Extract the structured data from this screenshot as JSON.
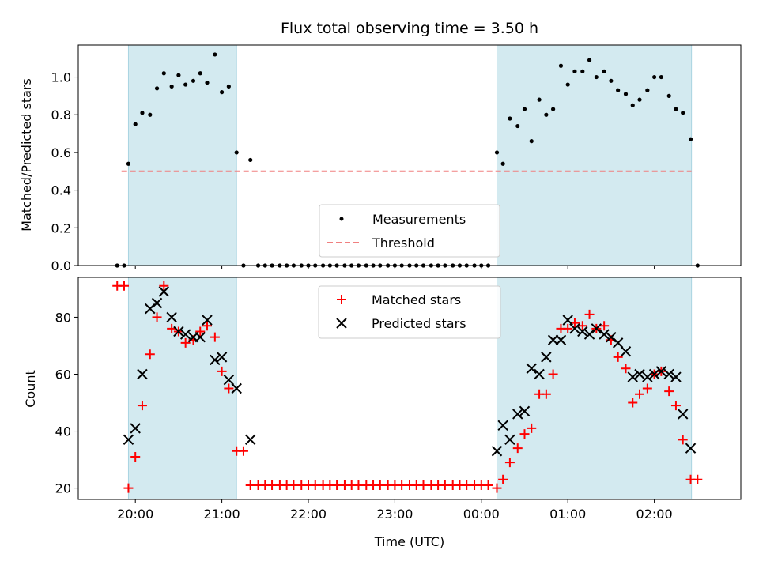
{
  "chart_data": {
    "type": "scatter",
    "title": "Flux total observing time = 3.50 h",
    "x_tick_labels": [
      "20:00",
      "21:00",
      "22:00",
      "23:00",
      "00:00",
      "01:00",
      "02:00"
    ],
    "x_tick_hours": [
      20,
      21,
      22,
      23,
      24,
      25,
      26
    ],
    "xlabel": "Time (UTC)",
    "xlim": [
      19.34,
      27.0
    ],
    "shaded_intervals": [
      [
        19.92,
        21.17
      ],
      [
        24.18,
        26.43
      ]
    ],
    "colors": {
      "shade": "#d3eaf0",
      "shade_edge": "#a9d4e1",
      "matched": "#ff0000",
      "predicted": "#000000",
      "measure": "#000000",
      "threshold": "#f08080"
    },
    "top": {
      "ylabel": "Matched/Predicted stars",
      "ylim": [
        0,
        1.17
      ],
      "y_ticks": [
        "0.0",
        "0.2",
        "0.4",
        "0.6",
        "0.8",
        "1.0"
      ],
      "y_tick_values": [
        0,
        0.2,
        0.4,
        0.6,
        0.8,
        1.0
      ],
      "threshold": {
        "value": 0.5,
        "x_range": [
          19.84,
          26.43
        ]
      },
      "legend": [
        "Measurements",
        "Threshold"
      ],
      "measurements": [
        [
          19.79,
          0.0
        ],
        [
          19.87,
          0.0
        ],
        [
          19.92,
          0.54
        ],
        [
          20.0,
          0.75
        ],
        [
          20.08,
          0.81
        ],
        [
          20.17,
          0.8
        ],
        [
          20.25,
          0.94
        ],
        [
          20.33,
          1.02
        ],
        [
          20.42,
          0.95
        ],
        [
          20.5,
          1.01
        ],
        [
          20.58,
          0.96
        ],
        [
          20.67,
          0.98
        ],
        [
          20.75,
          1.02
        ],
        [
          20.83,
          0.97
        ],
        [
          20.92,
          1.12
        ],
        [
          21.0,
          0.92
        ],
        [
          21.08,
          0.95
        ],
        [
          21.17,
          0.6
        ],
        [
          21.25,
          0.0
        ],
        [
          21.33,
          0.56
        ],
        [
          21.42,
          0.0
        ],
        [
          21.5,
          0.0
        ],
        [
          21.58,
          0.0
        ],
        [
          21.67,
          0.0
        ],
        [
          21.75,
          0.0
        ],
        [
          21.83,
          0.0
        ],
        [
          21.92,
          0.0
        ],
        [
          22.0,
          0.0
        ],
        [
          22.08,
          0.0
        ],
        [
          22.17,
          0.0
        ],
        [
          22.25,
          0.0
        ],
        [
          22.33,
          0.0
        ],
        [
          22.42,
          0.0
        ],
        [
          22.5,
          0.0
        ],
        [
          22.58,
          0.0
        ],
        [
          22.67,
          0.0
        ],
        [
          22.75,
          0.0
        ],
        [
          22.83,
          0.0
        ],
        [
          22.92,
          0.0
        ],
        [
          23.0,
          0.0
        ],
        [
          23.08,
          0.0
        ],
        [
          23.17,
          0.0
        ],
        [
          23.25,
          0.0
        ],
        [
          23.33,
          0.0
        ],
        [
          23.42,
          0.0
        ],
        [
          23.5,
          0.0
        ],
        [
          23.58,
          0.0
        ],
        [
          23.67,
          0.0
        ],
        [
          23.75,
          0.0
        ],
        [
          23.83,
          0.0
        ],
        [
          23.92,
          0.0
        ],
        [
          24.0,
          0.0
        ],
        [
          24.08,
          0.0
        ],
        [
          24.18,
          0.6
        ],
        [
          24.25,
          0.54
        ],
        [
          24.33,
          0.78
        ],
        [
          24.42,
          0.74
        ],
        [
          24.5,
          0.83
        ],
        [
          24.58,
          0.66
        ],
        [
          24.67,
          0.88
        ],
        [
          24.75,
          0.8
        ],
        [
          24.83,
          0.83
        ],
        [
          24.92,
          1.06
        ],
        [
          25.0,
          0.96
        ],
        [
          25.08,
          1.03
        ],
        [
          25.17,
          1.03
        ],
        [
          25.25,
          1.09
        ],
        [
          25.33,
          1.0
        ],
        [
          25.42,
          1.03
        ],
        [
          25.5,
          0.98
        ],
        [
          25.58,
          0.93
        ],
        [
          25.67,
          0.91
        ],
        [
          25.75,
          0.85
        ],
        [
          25.83,
          0.88
        ],
        [
          25.92,
          0.93
        ],
        [
          26.0,
          1.0
        ],
        [
          26.08,
          1.0
        ],
        [
          26.17,
          0.9
        ],
        [
          26.25,
          0.83
        ],
        [
          26.33,
          0.81
        ],
        [
          26.42,
          0.67
        ],
        [
          26.5,
          0.0
        ]
      ]
    },
    "bottom": {
      "ylabel": "Count",
      "ylim": [
        16,
        94
      ],
      "y_ticks": [
        "20",
        "40",
        "60",
        "80"
      ],
      "y_tick_values": [
        20,
        40,
        60,
        80
      ],
      "legend": [
        "Matched stars",
        "Predicted stars"
      ],
      "matched": [
        [
          19.79,
          91
        ],
        [
          19.87,
          91
        ],
        [
          19.92,
          20
        ],
        [
          20.0,
          31
        ],
        [
          20.08,
          49
        ],
        [
          20.17,
          67
        ],
        [
          20.25,
          80
        ],
        [
          20.33,
          91
        ],
        [
          20.42,
          76
        ],
        [
          20.5,
          75
        ],
        [
          20.58,
          71
        ],
        [
          20.67,
          72
        ],
        [
          20.75,
          75
        ],
        [
          20.83,
          77
        ],
        [
          20.92,
          73
        ],
        [
          21.0,
          61
        ],
        [
          21.08,
          55
        ],
        [
          21.17,
          33
        ],
        [
          21.25,
          33
        ],
        [
          21.33,
          21
        ],
        [
          21.42,
          21
        ],
        [
          21.5,
          21
        ],
        [
          21.58,
          21
        ],
        [
          21.67,
          21
        ],
        [
          21.75,
          21
        ],
        [
          21.83,
          21
        ],
        [
          21.92,
          21
        ],
        [
          22.0,
          21
        ],
        [
          22.08,
          21
        ],
        [
          22.17,
          21
        ],
        [
          22.25,
          21
        ],
        [
          22.33,
          21
        ],
        [
          22.42,
          21
        ],
        [
          22.5,
          21
        ],
        [
          22.58,
          21
        ],
        [
          22.67,
          21
        ],
        [
          22.75,
          21
        ],
        [
          22.83,
          21
        ],
        [
          22.92,
          21
        ],
        [
          23.0,
          21
        ],
        [
          23.08,
          21
        ],
        [
          23.17,
          21
        ],
        [
          23.25,
          21
        ],
        [
          23.33,
          21
        ],
        [
          23.42,
          21
        ],
        [
          23.5,
          21
        ],
        [
          23.58,
          21
        ],
        [
          23.67,
          21
        ],
        [
          23.75,
          21
        ],
        [
          23.83,
          21
        ],
        [
          23.92,
          21
        ],
        [
          24.0,
          21
        ],
        [
          24.08,
          21
        ],
        [
          24.18,
          20
        ],
        [
          24.25,
          23
        ],
        [
          24.33,
          29
        ],
        [
          24.42,
          34
        ],
        [
          24.5,
          39
        ],
        [
          24.58,
          41
        ],
        [
          24.67,
          53
        ],
        [
          24.75,
          53
        ],
        [
          24.83,
          60
        ],
        [
          24.92,
          76
        ],
        [
          25.0,
          76
        ],
        [
          25.08,
          78
        ],
        [
          25.17,
          77
        ],
        [
          25.25,
          81
        ],
        [
          25.33,
          76
        ],
        [
          25.42,
          77
        ],
        [
          25.5,
          72
        ],
        [
          25.58,
          66
        ],
        [
          25.67,
          62
        ],
        [
          25.75,
          50
        ],
        [
          25.83,
          53
        ],
        [
          25.92,
          55
        ],
        [
          26.0,
          60
        ],
        [
          26.08,
          61
        ],
        [
          26.17,
          54
        ],
        [
          26.25,
          49
        ],
        [
          26.33,
          37
        ],
        [
          26.42,
          23
        ],
        [
          26.5,
          23
        ]
      ],
      "predicted": [
        [
          19.92,
          37
        ],
        [
          20.0,
          41
        ],
        [
          20.08,
          60
        ],
        [
          20.17,
          83
        ],
        [
          20.25,
          85
        ],
        [
          20.33,
          89
        ],
        [
          20.42,
          80
        ],
        [
          20.5,
          75
        ],
        [
          20.58,
          74
        ],
        [
          20.67,
          73
        ],
        [
          20.75,
          73
        ],
        [
          20.83,
          79
        ],
        [
          20.92,
          65
        ],
        [
          21.0,
          66
        ],
        [
          21.08,
          58
        ],
        [
          21.17,
          55
        ],
        [
          21.33,
          37
        ],
        [
          24.18,
          33
        ],
        [
          24.25,
          42
        ],
        [
          24.33,
          37
        ],
        [
          24.42,
          46
        ],
        [
          24.5,
          47
        ],
        [
          24.58,
          62
        ],
        [
          24.67,
          60
        ],
        [
          24.75,
          66
        ],
        [
          24.83,
          72
        ],
        [
          24.92,
          72
        ],
        [
          25.0,
          79
        ],
        [
          25.08,
          76
        ],
        [
          25.17,
          75
        ],
        [
          25.25,
          74
        ],
        [
          25.33,
          76
        ],
        [
          25.42,
          74
        ],
        [
          25.5,
          73
        ],
        [
          25.58,
          71
        ],
        [
          25.67,
          68
        ],
        [
          25.75,
          59
        ],
        [
          25.83,
          60
        ],
        [
          25.92,
          59
        ],
        [
          26.0,
          60
        ],
        [
          26.08,
          61
        ],
        [
          26.17,
          60
        ],
        [
          26.25,
          59
        ],
        [
          26.33,
          46
        ],
        [
          26.42,
          34
        ]
      ]
    }
  }
}
